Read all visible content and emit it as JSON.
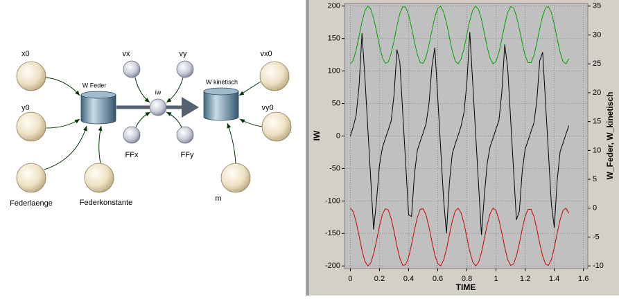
{
  "diagram": {
    "nodes": [
      {
        "label": "x0"
      },
      {
        "label": "y0"
      },
      {
        "label": "Federlaenge"
      },
      {
        "label": "Federkonstante"
      },
      {
        "label": "W Feder"
      },
      {
        "label": "vx"
      },
      {
        "label": "vy"
      },
      {
        "label": "iw"
      },
      {
        "label": "FFx"
      },
      {
        "label": "FFy"
      },
      {
        "label": "W kinetisch"
      },
      {
        "label": "vx0"
      },
      {
        "label": "vy0"
      },
      {
        "label": "m"
      }
    ]
  },
  "chart_data": {
    "type": "line",
    "x_label": "TIME",
    "y_label": "IW",
    "y2_label": "W_Feder, W_kinetisch",
    "xlim": [
      -0.04,
      1.63
    ],
    "xticks": [
      0,
      0.2,
      0.4,
      0.6,
      0.8,
      1,
      1.2,
      1.4,
      1.6
    ],
    "ylim": [
      -204,
      204
    ],
    "yticks": [
      -200,
      -150,
      -100,
      -50,
      0,
      50,
      100,
      150,
      200
    ],
    "y2lim": [
      -10.46,
      35.46
    ],
    "y2ticks": [
      -10,
      -5,
      0,
      5,
      10,
      15,
      20,
      25,
      30,
      35
    ],
    "grid": true,
    "x": [
      0,
      0.02,
      0.04,
      0.06,
      0.08,
      0.1,
      0.12,
      0.14,
      0.16,
      0.18,
      0.2,
      0.22,
      0.24,
      0.26,
      0.28,
      0.3,
      0.32,
      0.34,
      0.36,
      0.38,
      0.4,
      0.42,
      0.44,
      0.46,
      0.48,
      0.5,
      0.52,
      0.54,
      0.56,
      0.58,
      0.6,
      0.62,
      0.64,
      0.66,
      0.68,
      0.7,
      0.72,
      0.74,
      0.76,
      0.78,
      0.8,
      0.82,
      0.84,
      0.86,
      0.88,
      0.9,
      0.92,
      0.94,
      0.96,
      0.98,
      1,
      1.02,
      1.04,
      1.06,
      1.08,
      1.1,
      1.12,
      1.14,
      1.16,
      1.18,
      1.2,
      1.22,
      1.24,
      1.26,
      1.28,
      1.3,
      1.32,
      1.34,
      1.36,
      1.38,
      1.4,
      1.42,
      1.44,
      1.46,
      1.48,
      1.5
    ],
    "series": [
      {
        "color": "#000000",
        "axis": "y",
        "values": [
          0,
          14,
          32,
          77,
          158,
          90,
          12,
          -66,
          -144,
          -99,
          -45,
          -18,
          -4,
          9,
          23,
          63,
          133,
          113,
          35,
          -43,
          -121,
          -124,
          -59,
          -22,
          -8,
          5,
          19,
          50,
          107,
          136,
          59,
          -19,
          -97,
          -150,
          -72,
          -27,
          -12,
          1,
          15,
          36,
          82,
          160,
          82,
          4,
          -74,
          -152,
          -91,
          -41,
          -16,
          -3,
          11,
          24,
          68,
          141,
          105,
          27,
          -51,
          -129,
          -116,
          -54,
          -20,
          -7,
          7,
          20,
          54,
          116,
          129,
          51,
          -27,
          -105,
          -141,
          -68,
          -24,
          -11,
          3,
          16
        ]
      },
      {
        "color": "#cc0000",
        "axis": "y2",
        "values": [
          0,
          -0.6,
          -2.4,
          -4.8,
          -7.3,
          -9.2,
          -10,
          -9.5,
          -7.9,
          -5.6,
          -3.1,
          -1.1,
          -0.1,
          -0.3,
          -1.8,
          -4,
          -6.6,
          -8.7,
          -9.9,
          -9.8,
          -8.5,
          -6.3,
          -3.8,
          -1.6,
          -0.2,
          -0.1,
          -1.2,
          -3.3,
          -5.8,
          -8.1,
          -9.6,
          -10,
          -9,
          -7.1,
          -4.6,
          -2.2,
          -0.5,
          0,
          -0.8,
          -2.6,
          -5.1,
          -7.5,
          -9.3,
          -10,
          -9.4,
          -7.7,
          -5.3,
          -2.8,
          -0.9,
          0,
          -0.4,
          -2,
          -4.3,
          -6.8,
          -8.9,
          -9.9,
          -9.7,
          -8.3,
          -6.1,
          -3.6,
          -1.4,
          -0.2,
          -0.2,
          -1.4,
          -3.6,
          -6.1,
          -8.3,
          -9.7,
          -9.9,
          -8.9,
          -6.8,
          -4.3,
          -2,
          -0.4,
          0,
          -0.9
        ]
      },
      {
        "color": "#00a000",
        "axis": "y2",
        "values": [
          25,
          25.6,
          27.4,
          29.8,
          32.3,
          34.2,
          35,
          34.5,
          32.9,
          30.6,
          28.1,
          26.1,
          25.1,
          25.3,
          26.8,
          29,
          31.6,
          33.7,
          34.9,
          34.8,
          33.5,
          31.3,
          28.8,
          26.6,
          25.2,
          25.1,
          26.2,
          28.3,
          30.8,
          33.1,
          34.6,
          35,
          34,
          32.1,
          29.6,
          27.2,
          25.5,
          25,
          25.8,
          27.6,
          30.1,
          32.5,
          34.3,
          35,
          34.4,
          32.7,
          30.3,
          27.8,
          25.9,
          25,
          25.4,
          27,
          29.3,
          31.8,
          33.9,
          34.9,
          34.7,
          33.3,
          31.1,
          28.6,
          26.4,
          25.2,
          25.2,
          26.4,
          28.6,
          31.1,
          33.3,
          34.7,
          34.9,
          33.9,
          31.8,
          29.3,
          27,
          25.4,
          25,
          25.9
        ]
      }
    ]
  }
}
